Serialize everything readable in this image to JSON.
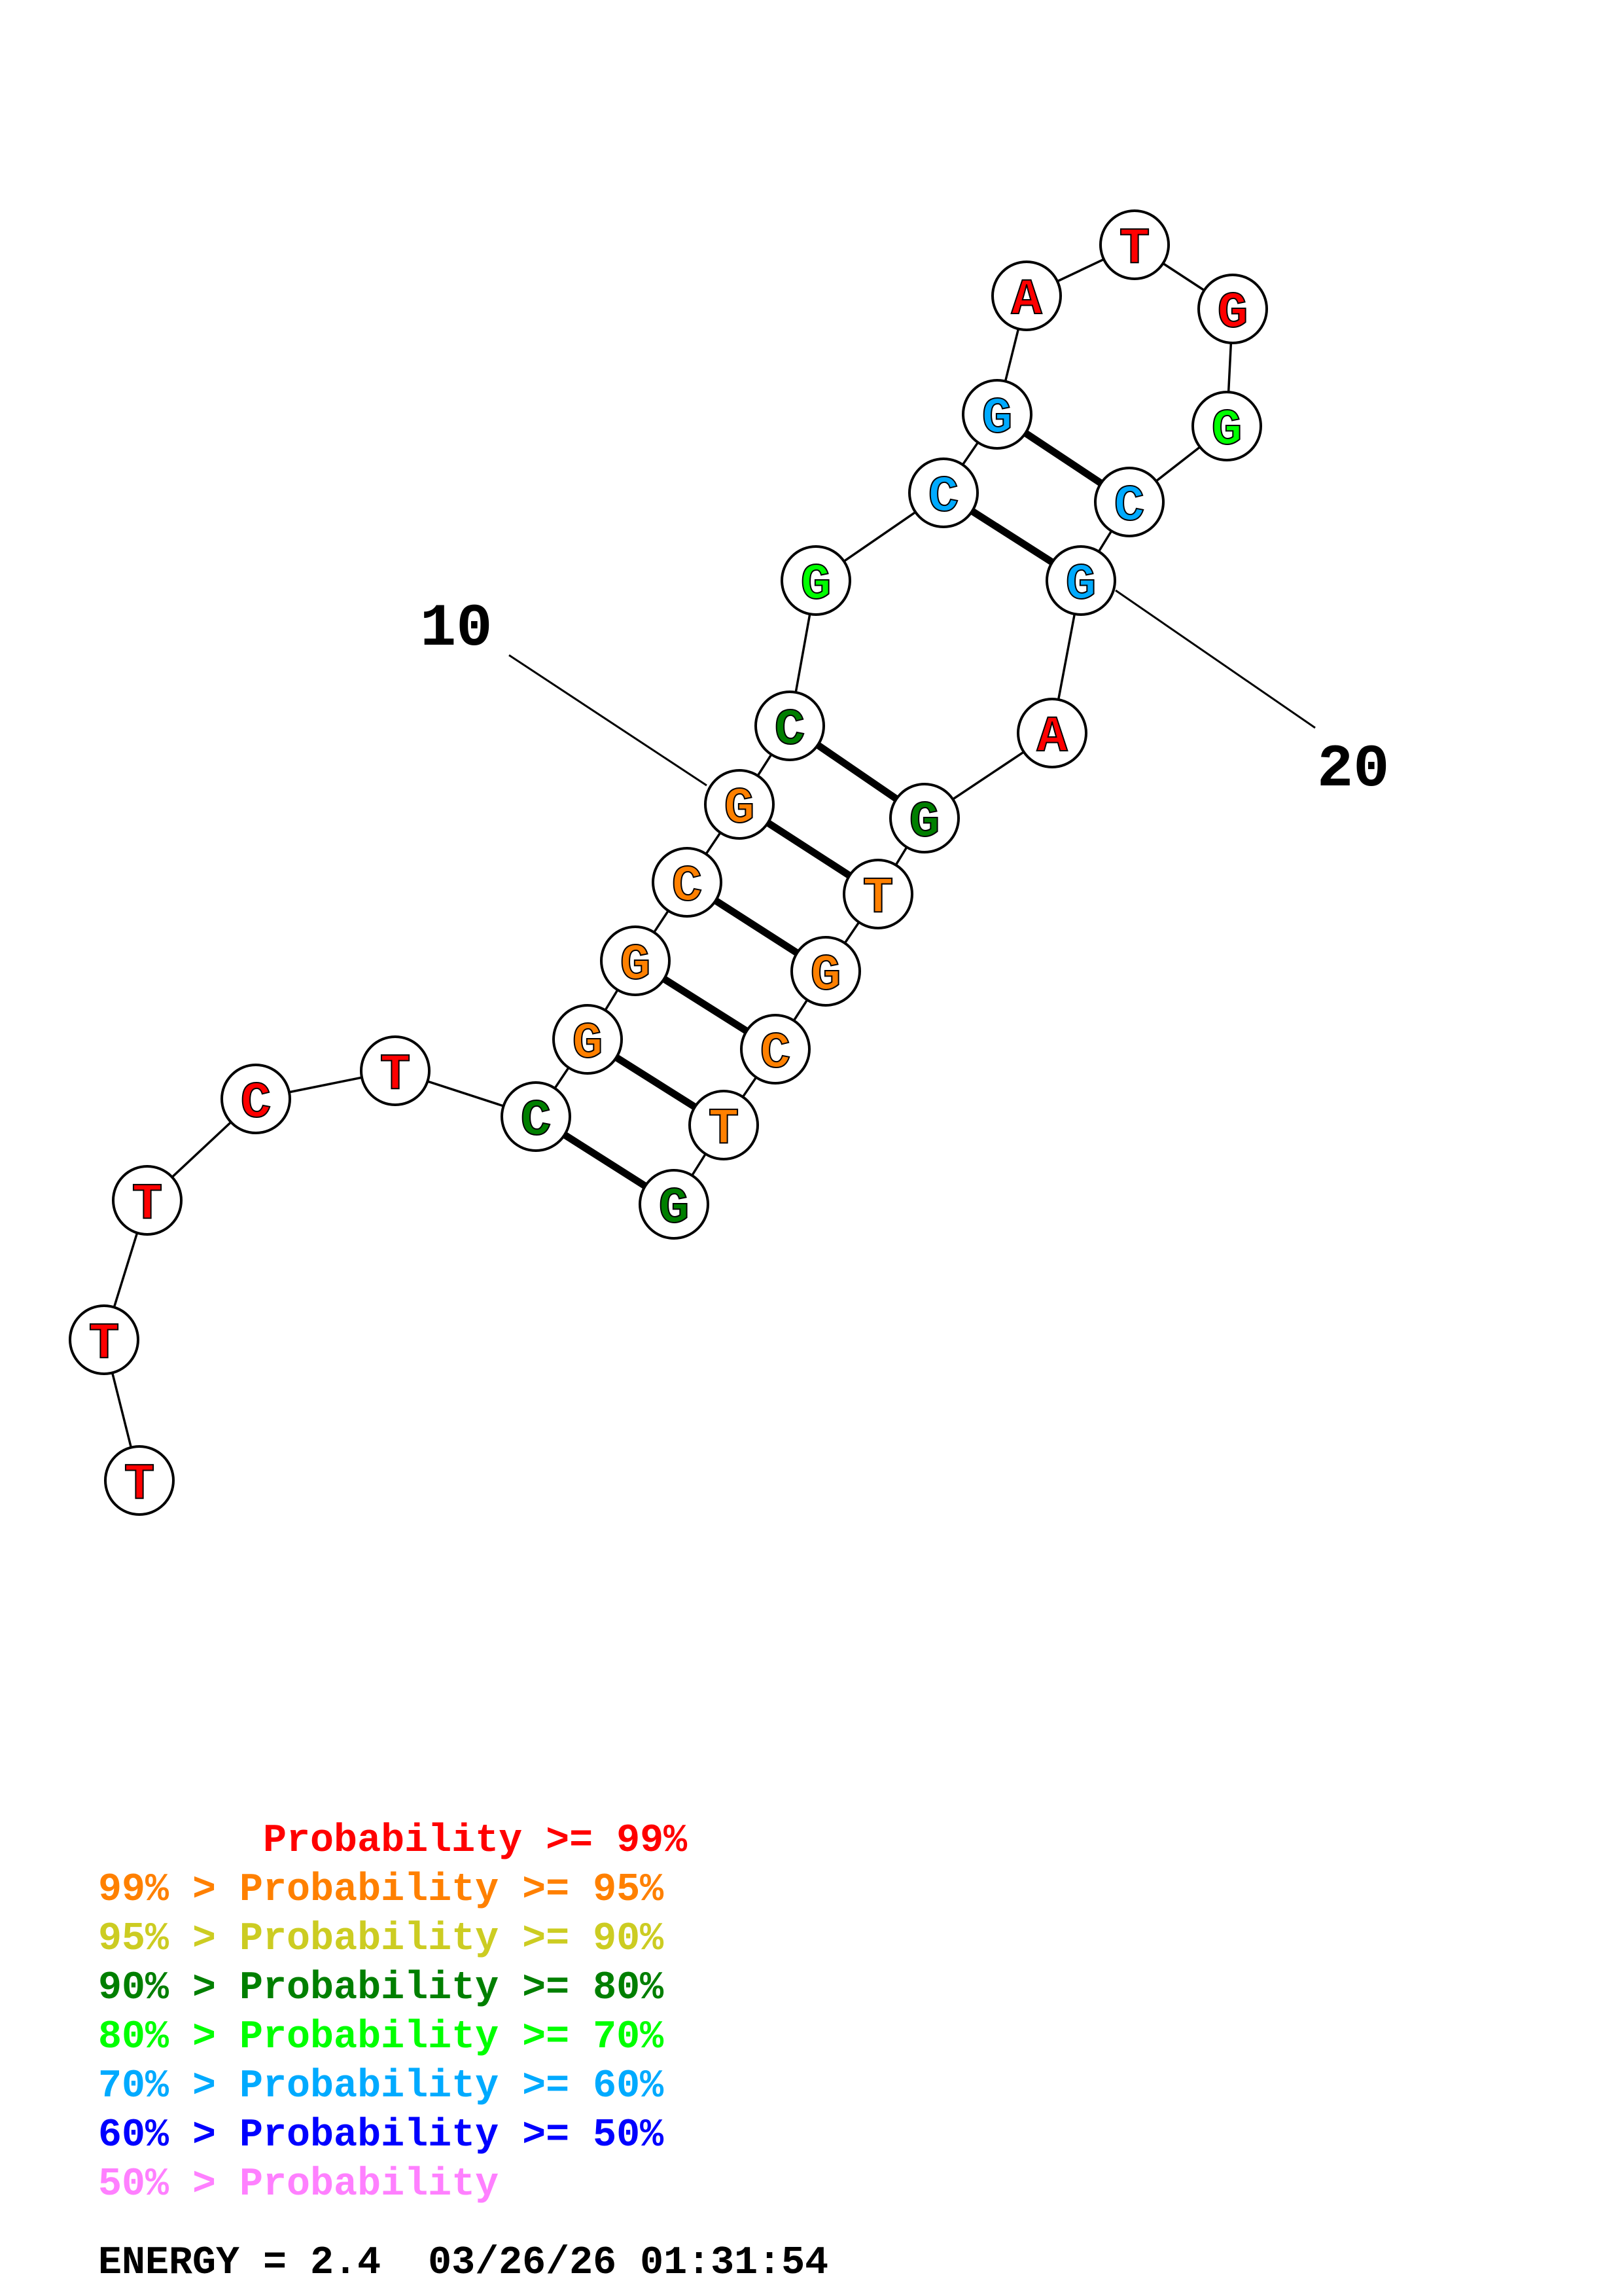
{
  "structure": {
    "sequence": [
      "T",
      "T",
      "T",
      "C",
      "T",
      "C",
      "G",
      "G",
      "C",
      "G",
      "C",
      "G",
      "C",
      "G",
      "A",
      "T",
      "G",
      "G",
      "C",
      "G",
      "A",
      "G",
      "T",
      "G",
      "C",
      "T",
      "G"
    ],
    "nucleotide_colors": [
      "#ff0000",
      "#ff0000",
      "#ff0000",
      "#ff0000",
      "#ff0000",
      "#007f00",
      "#ff8000",
      "#ff8000",
      "#ff8000",
      "#ff8000",
      "#007f00",
      "#00ff00",
      "#00aaff",
      "#00aaff",
      "#ff0000",
      "#ff0000",
      "#ff0000",
      "#00ff00",
      "#00aaff",
      "#00aaff",
      "#ff0000",
      "#007f00",
      "#ff8000",
      "#ff8000",
      "#ff8000",
      "#ff8000",
      "#007f00"
    ],
    "pairs": [
      [
        6,
        27
      ],
      [
        7,
        26
      ],
      [
        8,
        25
      ],
      [
        9,
        24
      ],
      [
        10,
        23
      ],
      [
        11,
        22
      ],
      [
        13,
        20
      ],
      [
        14,
        19
      ]
    ],
    "position_labels": [
      {
        "index": 10,
        "text": "10"
      },
      {
        "index": 20,
        "text": "20"
      }
    ]
  },
  "legend": [
    {
      "text": "       Probability >= 99%",
      "color": "#ff0000"
    },
    {
      "text": "99% > Probability >= 95%",
      "color": "#ff8000"
    },
    {
      "text": "95% > Probability >= 90%",
      "color": "#cccc22"
    },
    {
      "text": "90% > Probability >= 80%",
      "color": "#007f00"
    },
    {
      "text": "80% > Probability >= 70%",
      "color": "#00ff00"
    },
    {
      "text": "70% > Probability >= 60%",
      "color": "#00aaff"
    },
    {
      "text": "60% > Probability >= 50%",
      "color": "#0000ff"
    },
    {
      "text": "50% > Probability",
      "color": "#ff80ff"
    }
  ],
  "footer": {
    "energy": "ENERGY = 2.4  03/26/26 01:31:54"
  }
}
